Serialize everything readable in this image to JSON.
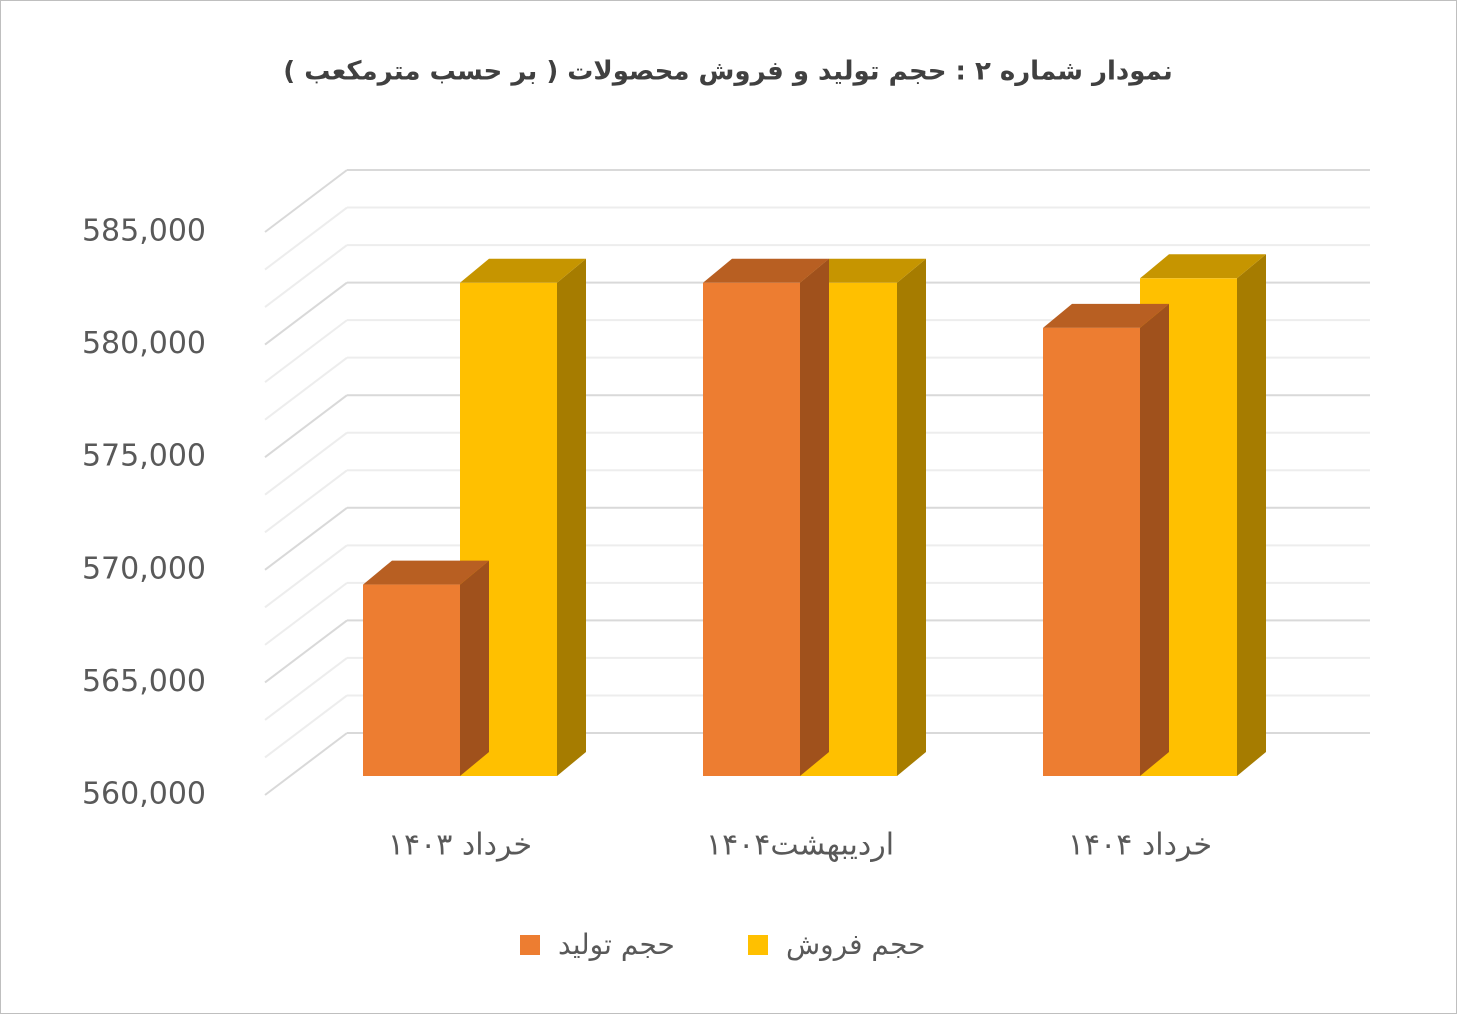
{
  "chart_data": {
    "type": "bar3d",
    "title": "نمودار شماره ۲ : حجم  تولید و فروش محصولات ( بر حسب مترمکعب )",
    "categories": [
      "خرداد ۱۴۰۳",
      "اردیبهشت۱۴۰۴",
      "خرداد ۱۴۰۴"
    ],
    "series": [
      {
        "name": "حجم تولید",
        "color": "#ED7D31",
        "top_color": "#B85F22",
        "side_color": "#A0511C",
        "values": [
          568500,
          581900,
          579900
        ]
      },
      {
        "name": "حجم فروش",
        "color": "#FFC000",
        "top_color": "#C69500",
        "side_color": "#A67C00",
        "values": [
          581900,
          581900,
          582100
        ]
      }
    ],
    "ylim": [
      560000,
      585000
    ],
    "yticks": [
      {
        "value": 560000,
        "label": "560,000"
      },
      {
        "value": 565000,
        "label": "565,000"
      },
      {
        "value": 570000,
        "label": "570,000"
      },
      {
        "value": 575000,
        "label": "575,000"
      },
      {
        "value": 580000,
        "label": "580,000"
      },
      {
        "value": 585000,
        "label": "585,000"
      }
    ],
    "grid": true,
    "legend": "bottom"
  }
}
